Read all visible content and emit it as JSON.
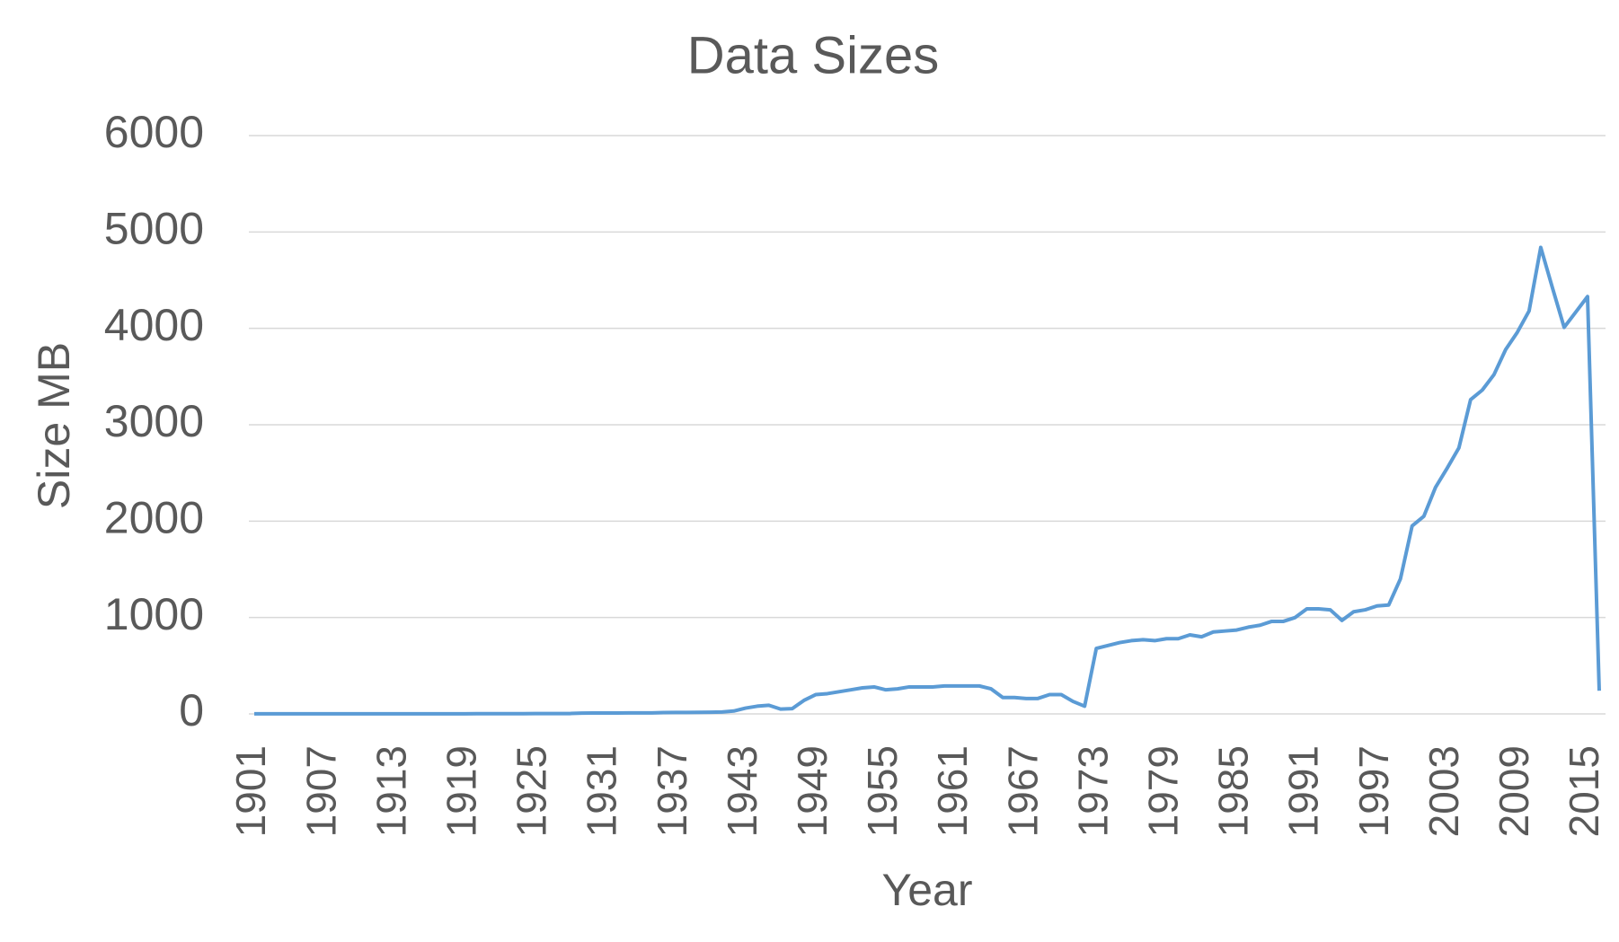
{
  "chart_data": {
    "type": "line",
    "title": "Data Sizes",
    "x_label": "Year",
    "y_label": "Size MB",
    "x": [
      1901,
      1902,
      1903,
      1904,
      1905,
      1906,
      1907,
      1908,
      1909,
      1910,
      1911,
      1912,
      1913,
      1914,
      1915,
      1916,
      1917,
      1918,
      1919,
      1920,
      1921,
      1922,
      1923,
      1924,
      1925,
      1926,
      1927,
      1928,
      1929,
      1930,
      1931,
      1932,
      1933,
      1934,
      1935,
      1936,
      1937,
      1938,
      1939,
      1940,
      1941,
      1942,
      1943,
      1944,
      1945,
      1946,
      1947,
      1948,
      1949,
      1950,
      1951,
      1952,
      1953,
      1954,
      1955,
      1956,
      1957,
      1958,
      1959,
      1960,
      1961,
      1962,
      1963,
      1964,
      1965,
      1966,
      1967,
      1968,
      1969,
      1970,
      1971,
      1972,
      1973,
      1974,
      1975,
      1976,
      1977,
      1978,
      1979,
      1980,
      1981,
      1982,
      1983,
      1984,
      1985,
      1986,
      1987,
      1988,
      1989,
      1990,
      1991,
      1992,
      1993,
      1994,
      1995,
      1996,
      1997,
      1998,
      1999,
      2000,
      2001,
      2002,
      2003,
      2004,
      2005,
      2006,
      2007,
      2008,
      2009,
      2010,
      2011,
      2012,
      2013,
      2014,
      2015,
      2016
    ],
    "series": [
      {
        "name": "Size MB",
        "color": "#5b9bd5",
        "values": [
          1,
          1,
          1,
          1,
          1,
          1,
          1,
          1,
          1,
          1,
          1,
          1,
          1,
          1,
          1,
          1,
          1,
          1,
          1,
          2,
          2,
          2,
          2,
          2,
          3,
          3,
          3,
          4,
          8,
          9,
          9,
          9,
          10,
          10,
          10,
          14,
          15,
          15,
          16,
          17,
          20,
          30,
          60,
          80,
          90,
          50,
          55,
          140,
          200,
          210,
          230,
          250,
          270,
          280,
          250,
          260,
          280,
          280,
          280,
          290,
          290,
          290,
          290,
          260,
          170,
          170,
          160,
          160,
          200,
          200,
          130,
          80,
          680,
          710,
          740,
          760,
          770,
          760,
          780,
          780,
          820,
          800,
          850,
          860,
          870,
          900,
          920,
          960,
          960,
          1000,
          1090,
          1090,
          1080,
          970,
          1060,
          1080,
          1120,
          1130,
          1400,
          1950,
          2050,
          2350,
          2550,
          2760,
          3260,
          3360,
          3520,
          3780,
          3960,
          4180,
          4840,
          4420,
          4010,
          4170,
          4330,
          240
        ]
      }
    ],
    "xlim": [
      1901,
      2016
    ],
    "xticks": [
      1901,
      1907,
      1913,
      1919,
      1925,
      1931,
      1937,
      1943,
      1949,
      1955,
      1961,
      1967,
      1973,
      1979,
      1985,
      1991,
      1997,
      2003,
      2009,
      2015
    ],
    "ylim": [
      0,
      6000
    ],
    "yticks": [
      0,
      1000,
      2000,
      3000,
      4000,
      5000,
      6000
    ],
    "grid": true
  }
}
